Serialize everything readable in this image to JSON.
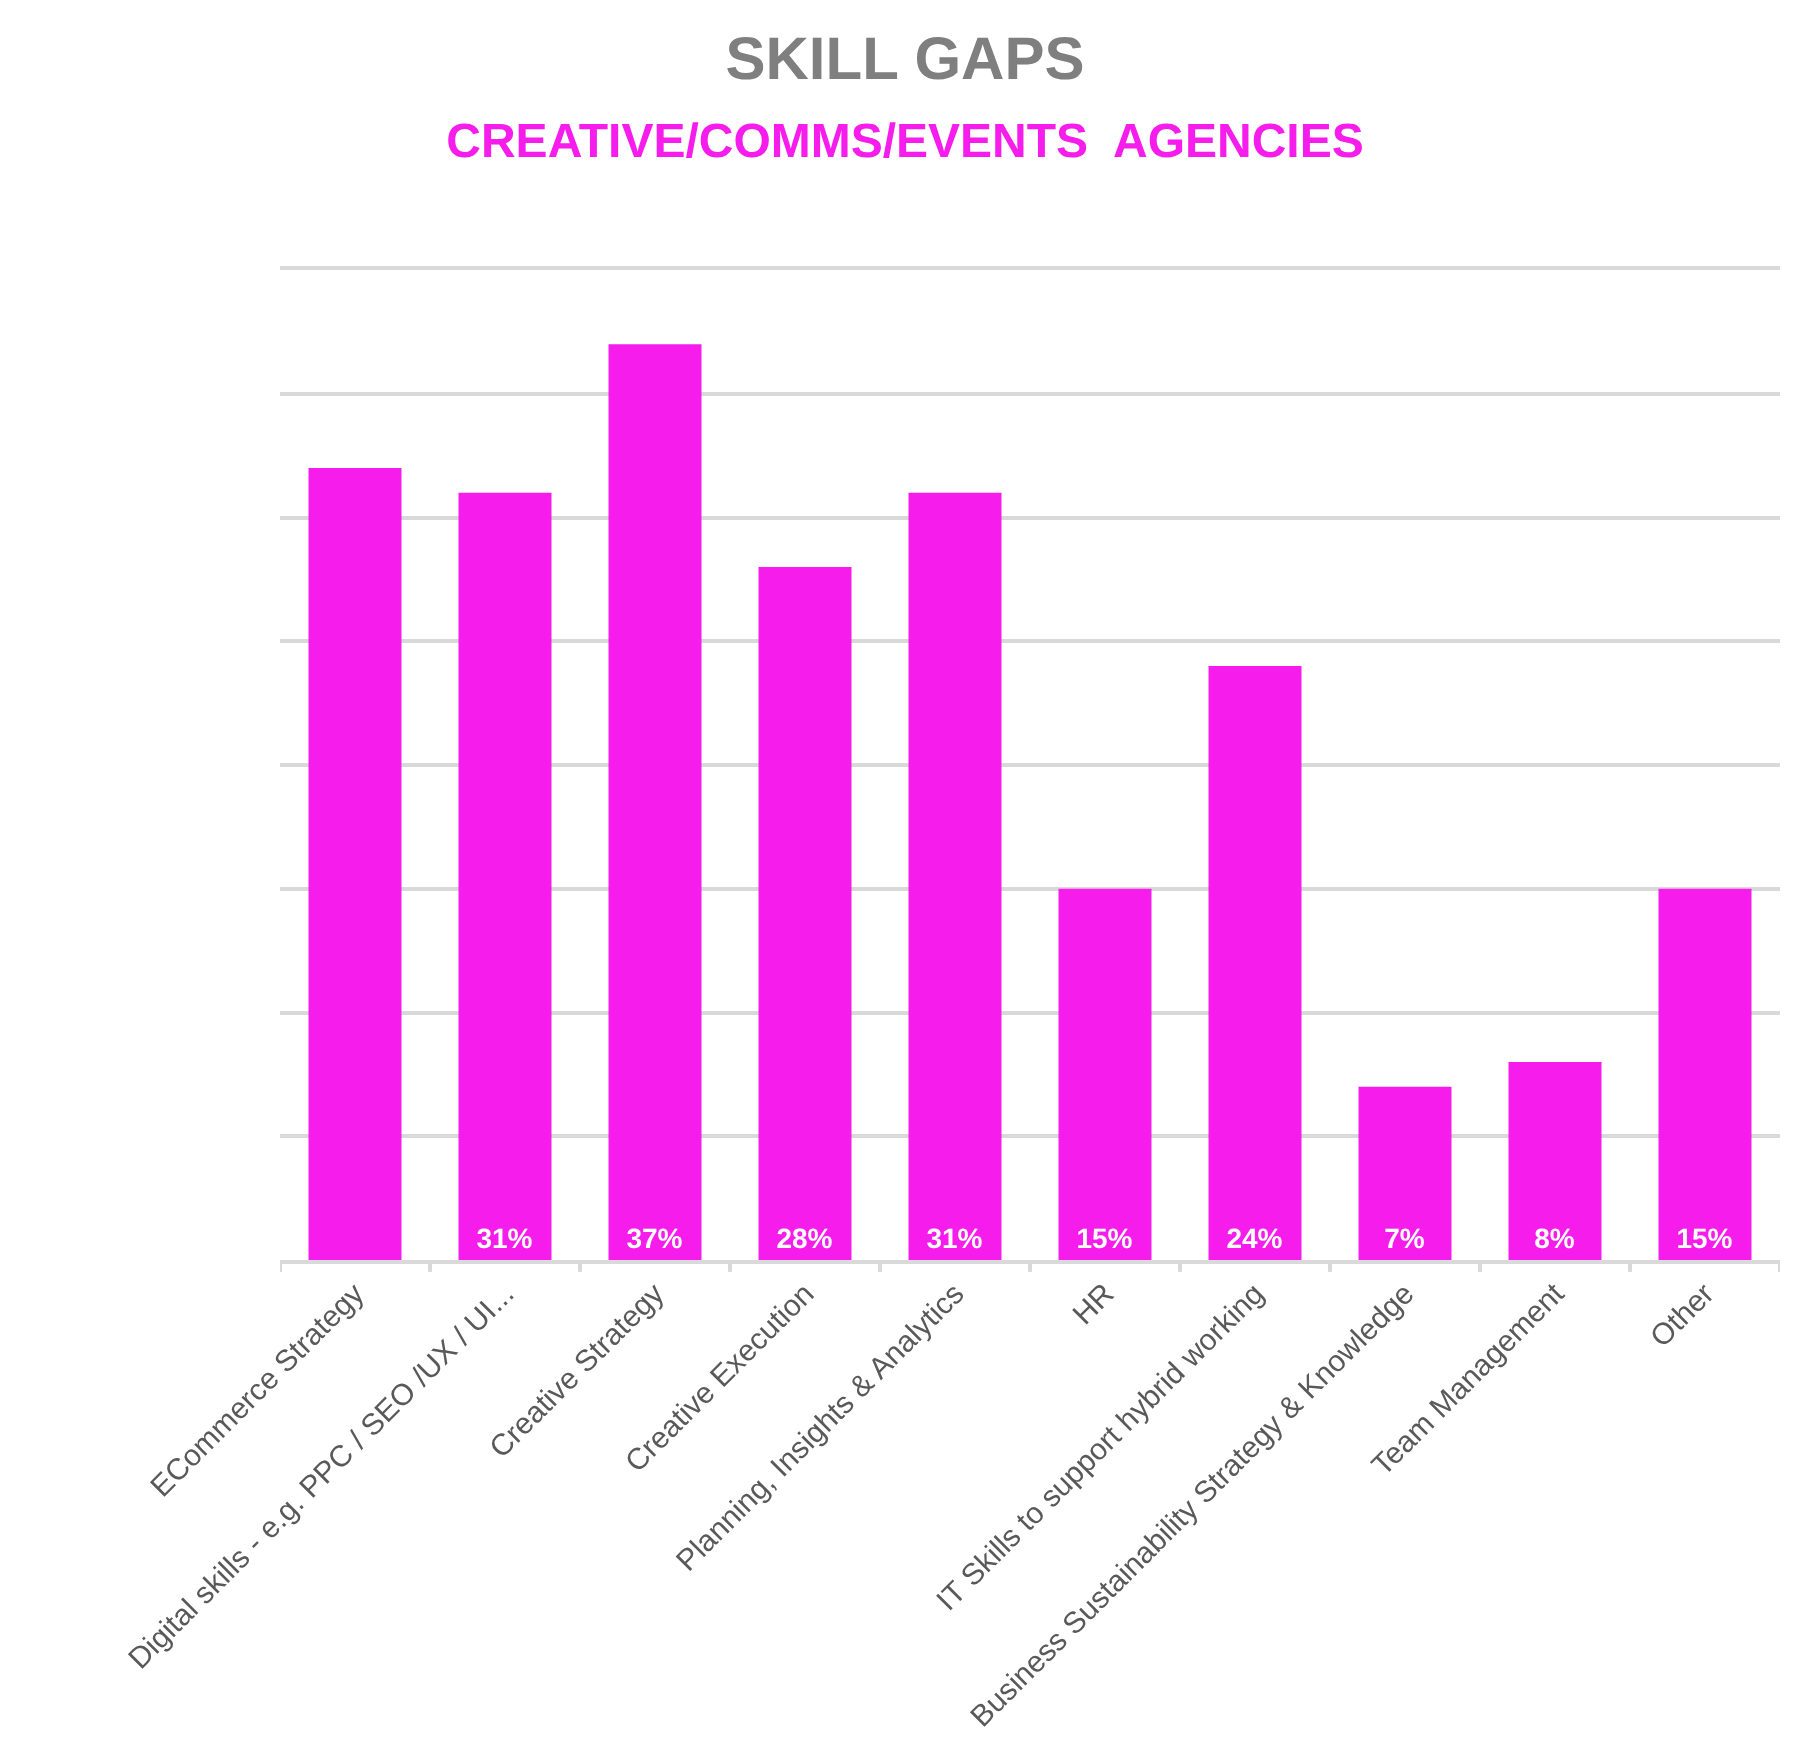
{
  "chart_data": {
    "type": "bar",
    "title": "SKILL GAPS",
    "subtitle": "CREATIVE/COMMS/EVENTS  AGENCIES",
    "categories": [
      "ECommerce Strategy",
      "Digital skills - e.g. PPC / SEO /UX / UI...",
      "Creative Strategy",
      "Creative Execution",
      "Planning, Insights & Analytics",
      "HR",
      "IT Skills to support hybrid working",
      "Business Sustainability Strategy & Knowledge",
      "Team Management",
      "Other"
    ],
    "values": [
      32,
      31,
      37,
      28,
      31,
      15,
      24,
      7,
      8,
      15
    ],
    "value_labels": [
      null,
      "31%",
      "37%",
      "28%",
      "31%",
      "15%",
      "24%",
      "7%",
      "8%",
      "15%"
    ],
    "color": "#f51cec",
    "ylim": [
      0,
      40
    ],
    "yticks": [
      {
        "value": 0,
        "label": null
      },
      {
        "value": 5,
        "label": null
      },
      {
        "value": 10,
        "label": null
      },
      {
        "value": 15,
        "label": null
      },
      {
        "value": 20,
        "label": null
      },
      {
        "value": 25,
        "label": null
      },
      {
        "value": 30,
        "label": null
      },
      {
        "value": 35,
        "label": null
      },
      {
        "value": 40,
        "label": null
      }
    ],
    "grid": "y",
    "legend": false,
    "tick_labels": "x"
  }
}
